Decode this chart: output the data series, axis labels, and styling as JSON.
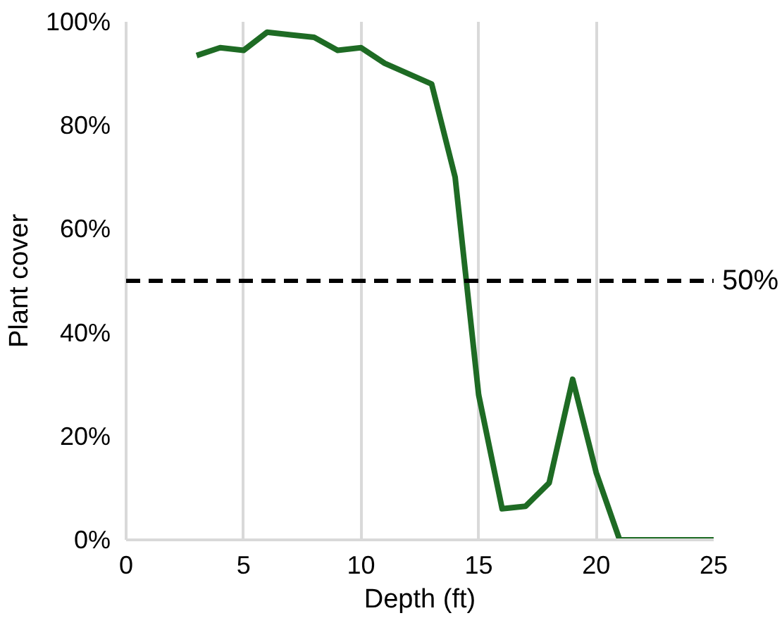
{
  "chart_data": {
    "type": "line",
    "xlabel": "Depth (ft)",
    "ylabel": "Plant cover",
    "x": [
      3,
      4,
      5,
      6,
      7,
      8,
      9,
      10,
      11,
      12,
      13,
      14,
      15,
      16,
      17,
      18,
      19,
      20,
      21,
      25
    ],
    "series": [
      {
        "color": "#1e6b24",
        "values": [
          93.5,
          95,
          94.5,
          98,
          97.5,
          97,
          94.5,
          95,
          92,
          90,
          88,
          70,
          28,
          6,
          6.5,
          11,
          31,
          13,
          0,
          0
        ]
      }
    ],
    "xlim": [
      0,
      25
    ],
    "xticks": [
      0,
      5,
      10,
      15,
      20,
      25
    ],
    "ylim": [
      0,
      100
    ],
    "yticks": [
      {
        "value": 0,
        "label": "0%"
      },
      {
        "value": 20,
        "label": "20%"
      },
      {
        "value": 40,
        "label": "40%"
      },
      {
        "value": 60,
        "label": "60%"
      },
      {
        "value": 80,
        "label": "80%"
      },
      {
        "value": 100,
        "label": "100%"
      }
    ],
    "ref_lines": [
      {
        "axis": "y",
        "value": 50,
        "label": "50%",
        "color": "#000000",
        "line_style": "dashed"
      }
    ],
    "grid": "x",
    "marker": "none",
    "line_style": "solid"
  }
}
